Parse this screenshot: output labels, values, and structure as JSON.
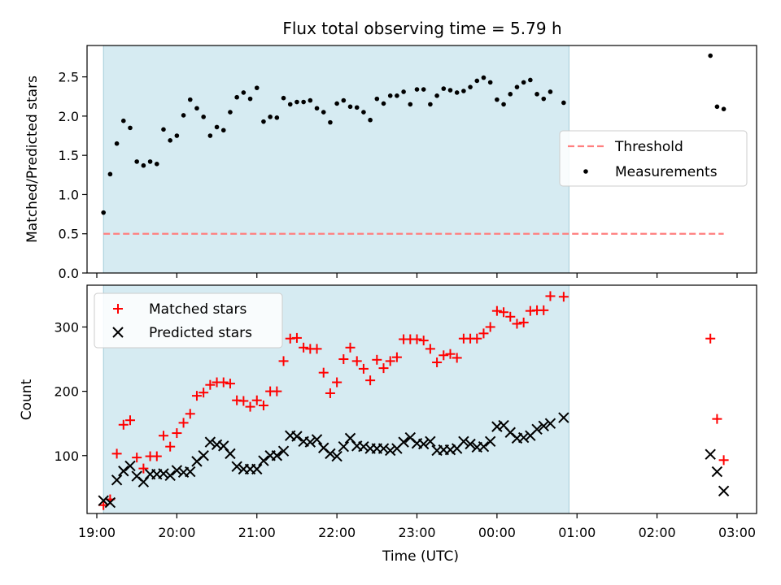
{
  "chart_data": [
    {
      "type": "scatter",
      "title": "Flux total observing time = 5.79 h",
      "ylabel": "Matched/Predicted stars",
      "xlabel": "",
      "xlim": [
        "19:00",
        "03:00"
      ],
      "ylim": [
        0,
        2.9
      ],
      "yticks": [
        "0.0",
        "0.5",
        "1.0",
        "1.5",
        "2.0",
        "2.5"
      ],
      "grid": false,
      "legend": "center-right",
      "shaded_interval": [
        "19:05",
        "00:54"
      ],
      "series": [
        {
          "name": "Threshold",
          "style": "dashed-line",
          "color": "#ff7f7f",
          "points": [
            [
              "19:05",
              0.5
            ],
            [
              "02:50",
              0.5
            ]
          ]
        },
        {
          "name": "Measurements",
          "style": "dot",
          "color": "#000000",
          "points": [
            [
              "19:05",
              0.77
            ],
            [
              "19:10",
              1.26
            ],
            [
              "19:15",
              1.65
            ],
            [
              "19:20",
              1.94
            ],
            [
              "19:25",
              1.85
            ],
            [
              "19:30",
              1.42
            ],
            [
              "19:35",
              1.37
            ],
            [
              "19:40",
              1.42
            ],
            [
              "19:45",
              1.39
            ],
            [
              "19:50",
              1.83
            ],
            [
              "19:55",
              1.69
            ],
            [
              "20:00",
              1.75
            ],
            [
              "20:05",
              2.01
            ],
            [
              "20:10",
              2.21
            ],
            [
              "20:15",
              2.1
            ],
            [
              "20:20",
              1.99
            ],
            [
              "20:25",
              1.75
            ],
            [
              "20:30",
              1.86
            ],
            [
              "20:35",
              1.82
            ],
            [
              "20:40",
              2.05
            ],
            [
              "20:45",
              2.24
            ],
            [
              "20:50",
              2.3
            ],
            [
              "20:55",
              2.22
            ],
            [
              "21:00",
              2.36
            ],
            [
              "21:05",
              1.93
            ],
            [
              "21:10",
              1.99
            ],
            [
              "21:15",
              1.98
            ],
            [
              "21:20",
              2.23
            ],
            [
              "21:25",
              2.15
            ],
            [
              "21:30",
              2.18
            ],
            [
              "21:35",
              2.18
            ],
            [
              "21:40",
              2.2
            ],
            [
              "21:45",
              2.1
            ],
            [
              "21:50",
              2.05
            ],
            [
              "21:55",
              1.92
            ],
            [
              "22:00",
              2.16
            ],
            [
              "22:05",
              2.2
            ],
            [
              "22:10",
              2.12
            ],
            [
              "22:15",
              2.11
            ],
            [
              "22:20",
              2.05
            ],
            [
              "22:25",
              1.95
            ],
            [
              "22:30",
              2.22
            ],
            [
              "22:35",
              2.16
            ],
            [
              "22:40",
              2.26
            ],
            [
              "22:45",
              2.26
            ],
            [
              "22:50",
              2.31
            ],
            [
              "22:55",
              2.15
            ],
            [
              "23:00",
              2.34
            ],
            [
              "23:05",
              2.34
            ],
            [
              "23:10",
              2.15
            ],
            [
              "23:15",
              2.26
            ],
            [
              "23:20",
              2.35
            ],
            [
              "23:25",
              2.33
            ],
            [
              "23:30",
              2.3
            ],
            [
              "23:35",
              2.32
            ],
            [
              "23:40",
              2.37
            ],
            [
              "23:45",
              2.45
            ],
            [
              "23:50",
              2.49
            ],
            [
              "23:55",
              2.43
            ],
            [
              "00:00",
              2.21
            ],
            [
              "00:05",
              2.15
            ],
            [
              "00:10",
              2.28
            ],
            [
              "00:15",
              2.37
            ],
            [
              "00:20",
              2.43
            ],
            [
              "00:25",
              2.46
            ],
            [
              "00:30",
              2.28
            ],
            [
              "00:35",
              2.22
            ],
            [
              "00:40",
              2.31
            ],
            [
              "00:50",
              2.17
            ],
            [
              "02:40",
              2.77
            ],
            [
              "02:45",
              2.12
            ],
            [
              "02:50",
              2.09
            ]
          ]
        }
      ]
    },
    {
      "type": "scatter",
      "title": "",
      "ylabel": "Count",
      "xlabel": "Time (UTC)",
      "xlim": [
        "19:00",
        "03:00"
      ],
      "xticks": [
        "19:00",
        "20:00",
        "21:00",
        "22:00",
        "23:00",
        "00:00",
        "01:00",
        "02:00",
        "03:00"
      ],
      "ylim": [
        10,
        365
      ],
      "yticks": [
        "100",
        "200",
        "300"
      ],
      "grid": false,
      "legend": "top-left",
      "shaded_interval": [
        "19:05",
        "00:54"
      ],
      "series": [
        {
          "name": "Matched stars",
          "style": "plus",
          "color": "#ff0000",
          "points": [
            [
              "19:05",
              23
            ],
            [
              "19:10",
              32
            ],
            [
              "19:15",
              103
            ],
            [
              "19:20",
              148
            ],
            [
              "19:25",
              155
            ],
            [
              "19:30",
              97
            ],
            [
              "19:35",
              80
            ],
            [
              "19:40",
              99
            ],
            [
              "19:45",
              99
            ],
            [
              "19:50",
              131
            ],
            [
              "19:55",
              114
            ],
            [
              "20:00",
              135
            ],
            [
              "20:05",
              151
            ],
            [
              "20:10",
              165
            ],
            [
              "20:15",
              193
            ],
            [
              "20:20",
              198
            ],
            [
              "20:25",
              210
            ],
            [
              "20:30",
              214
            ],
            [
              "20:35",
              214
            ],
            [
              "20:40",
              212
            ],
            [
              "20:45",
              186
            ],
            [
              "20:50",
              185
            ],
            [
              "20:55",
              176
            ],
            [
              "21:00",
              186
            ],
            [
              "21:05",
              178
            ],
            [
              "21:10",
              200
            ],
            [
              "21:15",
              200
            ],
            [
              "21:20",
              247
            ],
            [
              "21:25",
              282
            ],
            [
              "21:30",
              283
            ],
            [
              "21:35",
              268
            ],
            [
              "21:40",
              266
            ],
            [
              "21:45",
              266
            ],
            [
              "21:50",
              229
            ],
            [
              "21:55",
              197
            ],
            [
              "22:00",
              214
            ],
            [
              "22:05",
              250
            ],
            [
              "22:10",
              268
            ],
            [
              "22:15",
              247
            ],
            [
              "22:20",
              235
            ],
            [
              "22:25",
              217
            ],
            [
              "22:30",
              249
            ],
            [
              "22:35",
              236
            ],
            [
              "22:40",
              247
            ],
            [
              "22:45",
              253
            ],
            [
              "22:50",
              281
            ],
            [
              "22:55",
              281
            ],
            [
              "23:00",
              281
            ],
            [
              "23:05",
              279
            ],
            [
              "23:10",
              266
            ],
            [
              "23:15",
              245
            ],
            [
              "23:20",
              256
            ],
            [
              "23:25",
              258
            ],
            [
              "23:30",
              252
            ],
            [
              "23:35",
              282
            ],
            [
              "23:40",
              282
            ],
            [
              "23:45",
              282
            ],
            [
              "23:50",
              290
            ],
            [
              "23:55",
              300
            ],
            [
              "00:00",
              325
            ],
            [
              "00:05",
              323
            ],
            [
              "00:10",
              316
            ],
            [
              "00:15",
              305
            ],
            [
              "00:20",
              307
            ],
            [
              "00:25",
              325
            ],
            [
              "00:30",
              326
            ],
            [
              "00:35",
              326
            ],
            [
              "00:40",
              348
            ],
            [
              "00:50",
              347
            ],
            [
              "02:40",
              282
            ],
            [
              "02:45",
              157
            ],
            [
              "02:50",
              93
            ]
          ]
        },
        {
          "name": "Predicted stars",
          "style": "x",
          "color": "#000000",
          "points": [
            [
              "19:05",
              30
            ],
            [
              "19:10",
              27
            ],
            [
              "19:15",
              62
            ],
            [
              "19:20",
              76
            ],
            [
              "19:25",
              84
            ],
            [
              "19:30",
              68
            ],
            [
              "19:35",
              59
            ],
            [
              "19:40",
              71
            ],
            [
              "19:45",
              71
            ],
            [
              "19:50",
              72
            ],
            [
              "19:55",
              69
            ],
            [
              "20:00",
              77
            ],
            [
              "20:05",
              74
            ],
            [
              "20:10",
              75
            ],
            [
              "20:15",
              91
            ],
            [
              "20:20",
              100
            ],
            [
              "20:25",
              121
            ],
            [
              "20:30",
              117
            ],
            [
              "20:35",
              115
            ],
            [
              "20:40",
              103
            ],
            [
              "20:45",
              83
            ],
            [
              "20:50",
              79
            ],
            [
              "20:55",
              79
            ],
            [
              "21:00",
              79
            ],
            [
              "21:05",
              92
            ],
            [
              "21:10",
              100
            ],
            [
              "21:15",
              100
            ],
            [
              "21:20",
              107
            ],
            [
              "21:25",
              131
            ],
            [
              "21:30",
              130
            ],
            [
              "21:35",
              122
            ],
            [
              "21:40",
              121
            ],
            [
              "21:45",
              125
            ],
            [
              "21:50",
              112
            ],
            [
              "21:55",
              103
            ],
            [
              "22:00",
              99
            ],
            [
              "22:05",
              114
            ],
            [
              "22:10",
              127
            ],
            [
              "22:15",
              115
            ],
            [
              "22:20",
              114
            ],
            [
              "22:25",
              111
            ],
            [
              "22:30",
              111
            ],
            [
              "22:35",
              111
            ],
            [
              "22:40",
              108
            ],
            [
              "22:45",
              111
            ],
            [
              "22:50",
              121
            ],
            [
              "22:55",
              128
            ],
            [
              "23:00",
              119
            ],
            [
              "23:05",
              118
            ],
            [
              "23:10",
              122
            ],
            [
              "23:15",
              108
            ],
            [
              "23:20",
              109
            ],
            [
              "23:25",
              109
            ],
            [
              "23:30",
              111
            ],
            [
              "23:35",
              122
            ],
            [
              "23:40",
              118
            ],
            [
              "23:45",
              113
            ],
            [
              "23:50",
              114
            ],
            [
              "23:55",
              122
            ],
            [
              "00:00",
              145
            ],
            [
              "00:05",
              147
            ],
            [
              "00:10",
              136
            ],
            [
              "00:15",
              127
            ],
            [
              "00:20",
              128
            ],
            [
              "00:25",
              131
            ],
            [
              "00:30",
              141
            ],
            [
              "00:35",
              146
            ],
            [
              "00:40",
              150
            ],
            [
              "00:50",
              159
            ],
            [
              "02:40",
              102
            ],
            [
              "02:45",
              75
            ],
            [
              "02:50",
              45
            ]
          ]
        }
      ]
    }
  ]
}
